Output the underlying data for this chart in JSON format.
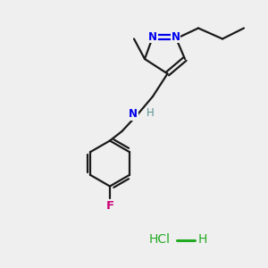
{
  "background_color": "#efefef",
  "bond_color": "#1a1a1a",
  "n_color": "#0000ee",
  "n_amine_color": "#0000ee",
  "h_amine_color": "#5a9090",
  "f_color": "#cc0077",
  "hcl_color": "#22aa22",
  "line_width": 1.6,
  "font_size_atoms": 8.5,
  "font_size_hcl": 10,
  "xlim": [
    0,
    10
  ],
  "ylim": [
    0,
    10
  ]
}
